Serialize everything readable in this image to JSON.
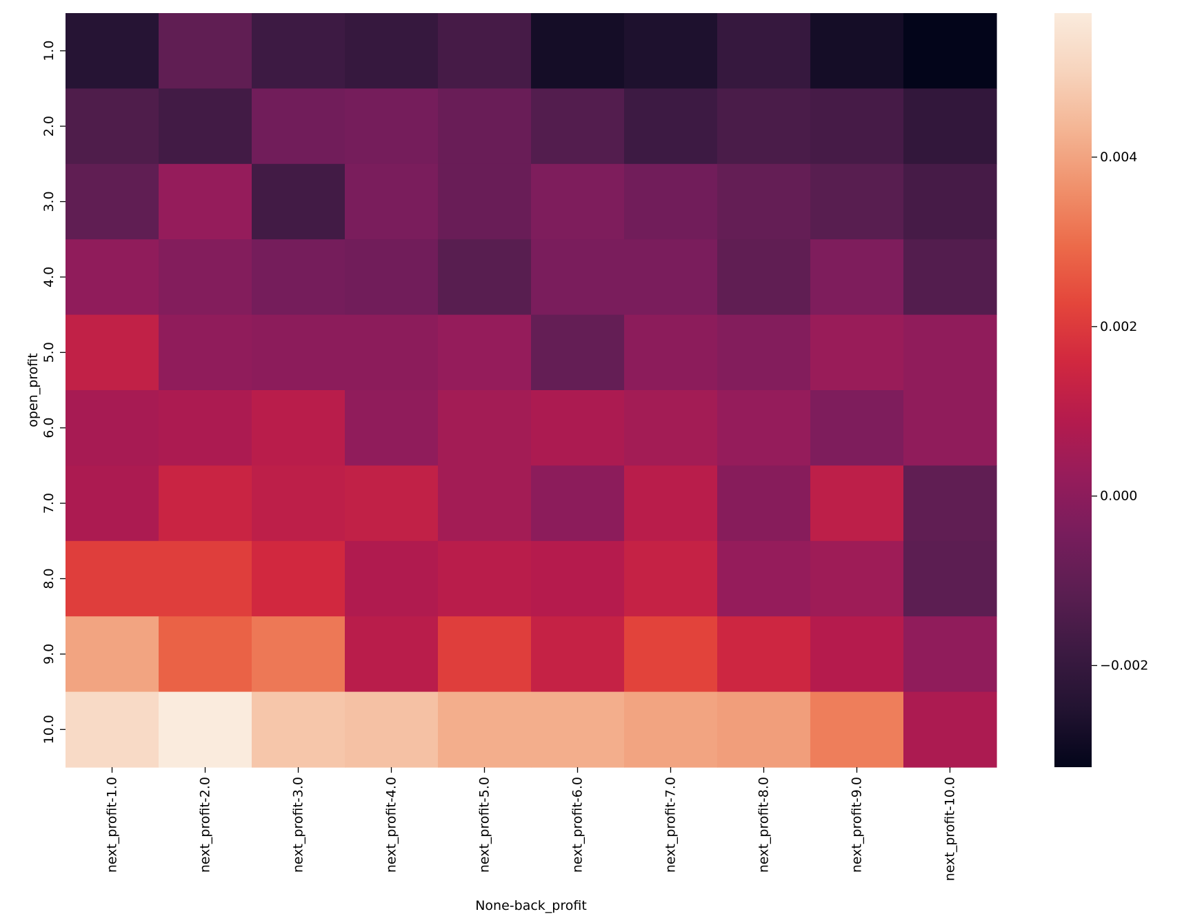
{
  "chart_data": {
    "type": "heatmap",
    "title": "",
    "xlabel": "None-back_profit",
    "ylabel": "open_profit",
    "x_categories": [
      "next_profit-1.0",
      "next_profit-2.0",
      "next_profit-3.0",
      "next_profit-4.0",
      "next_profit-5.0",
      "next_profit-6.0",
      "next_profit-7.0",
      "next_profit-8.0",
      "next_profit-9.0",
      "next_profit-10.0"
    ],
    "y_categories": [
      "1.0",
      "2.0",
      "3.0",
      "4.0",
      "5.0",
      "6.0",
      "7.0",
      "8.0",
      "9.0",
      "10.0"
    ],
    "values": [
      [
        -0.0024,
        -0.001,
        -0.0018,
        -0.002,
        -0.0016,
        -0.0028,
        -0.0026,
        -0.002,
        -0.0028,
        -0.0032
      ],
      [
        -0.0014,
        -0.0017,
        -0.0006,
        -0.0005,
        -0.0008,
        -0.0013,
        -0.0018,
        -0.0015,
        -0.0016,
        -0.0021
      ],
      [
        -0.001,
        0.0002,
        -0.0017,
        -0.0004,
        -0.0008,
        -0.0003,
        -0.0006,
        -0.0009,
        -0.0012,
        -0.0016
      ],
      [
        0.0001,
        -0.0002,
        -0.0005,
        -0.0006,
        -0.0012,
        -0.0004,
        -0.0004,
        -0.001,
        -0.0003,
        -0.0013
      ],
      [
        0.0012,
        0.0001,
        0.0,
        0.0,
        0.0002,
        -0.0009,
        0.0,
        -0.0002,
        0.0003,
        0.0001
      ],
      [
        0.0006,
        0.0007,
        0.001,
        0.0001,
        0.0005,
        0.0007,
        0.0005,
        0.0002,
        -0.0003,
        0.0001
      ],
      [
        0.0007,
        0.0014,
        0.0011,
        0.0012,
        0.0005,
        0.0,
        0.001,
        -0.0001,
        0.0011,
        -0.001
      ],
      [
        0.0021,
        0.0021,
        0.0016,
        0.0008,
        0.001,
        0.0009,
        0.0013,
        0.0002,
        0.0004,
        -0.0011
      ],
      [
        0.004,
        0.0028,
        0.0032,
        0.001,
        0.0021,
        0.0013,
        0.0022,
        0.0015,
        0.0009,
        0.0001
      ],
      [
        0.0052,
        0.0057,
        0.0047,
        0.0046,
        0.0042,
        0.0042,
        0.004,
        0.0039,
        0.0033,
        0.0007
      ]
    ],
    "colorbar": {
      "range": [
        -0.0032,
        0.0057
      ],
      "ticks": [
        -0.002,
        0.0,
        0.002,
        0.004
      ],
      "tick_labels": [
        "−0.002",
        "0.000",
        "0.002",
        "0.004"
      ]
    },
    "colormap": "rocket",
    "colormap_stops": [
      "#03051a",
      "#221331",
      "#3c1a42",
      "#5a1e51",
      "#771d5c",
      "#961c5b",
      "#b51b4d",
      "#d1283f",
      "#e4463b",
      "#ec6b4a",
      "#f0916c",
      "#f4b594",
      "#f7d4bd",
      "#faebdd"
    ]
  }
}
